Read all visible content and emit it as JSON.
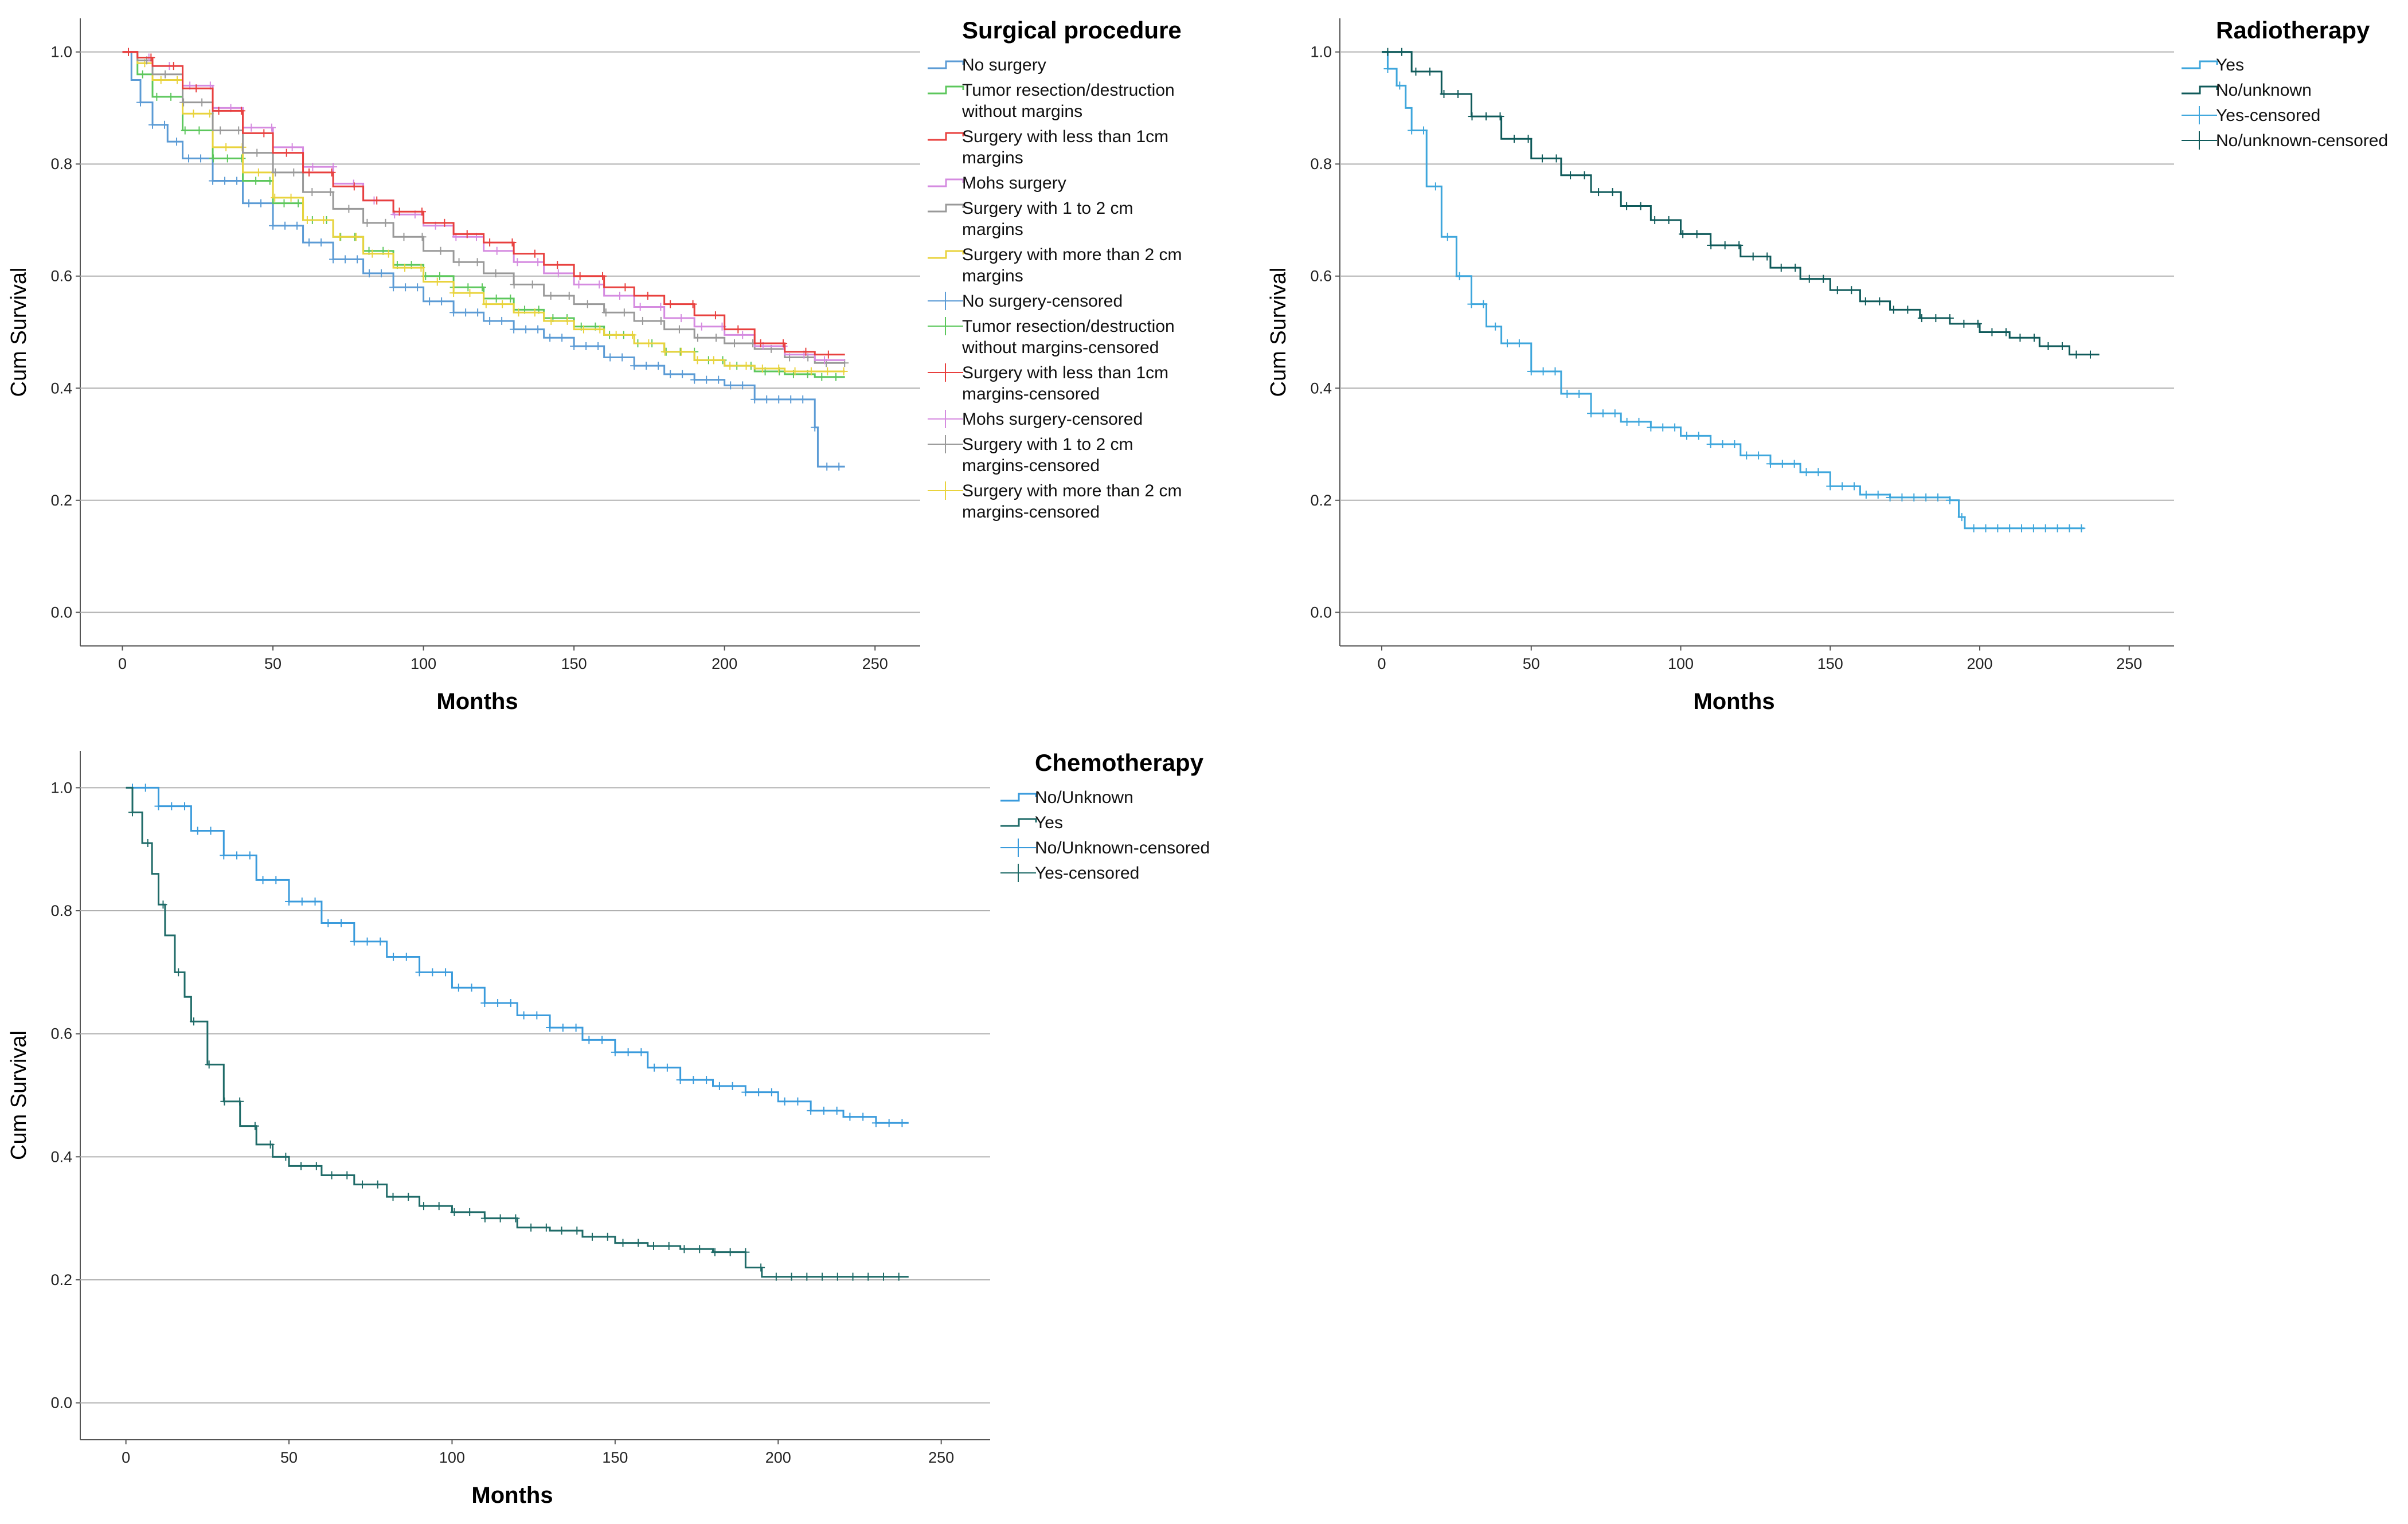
{
  "chart_data": [
    {
      "type": "line",
      "id": "surgery",
      "title": "",
      "xlabel": "Months",
      "ylabel": "Cum Survival",
      "xlim": [
        -14,
        265
      ],
      "ylim": [
        -0.06,
        1.06
      ],
      "xticks": [
        0,
        50,
        100,
        150,
        200,
        250
      ],
      "yticks": [
        0.0,
        0.2,
        0.4,
        0.6,
        0.8,
        1.0
      ],
      "xtick_labels": [
        "0",
        "50",
        "100",
        "150",
        "200",
        "250"
      ],
      "ytick_labels": [
        "0.0",
        "0.2",
        "0.4",
        "0.6",
        "0.8",
        "1.0"
      ],
      "grid": true,
      "legend_title": "Surgical procedure",
      "legend": [
        {
          "lines": [
            "No surgery"
          ],
          "color": "#5b9bd5",
          "marker": "step"
        },
        {
          "lines": [
            "Tumor resection/destruction",
            "without margins"
          ],
          "color": "#5cc75c",
          "marker": "step"
        },
        {
          "lines": [
            "Surgery with less than 1cm",
            "margins"
          ],
          "color": "#e8403e",
          "marker": "step"
        },
        {
          "lines": [
            "Mohs surgery"
          ],
          "color": "#d58be0",
          "marker": "step"
        },
        {
          "lines": [
            "Surgery with 1 to 2 cm",
            "margins"
          ],
          "color": "#999999",
          "marker": "step"
        },
        {
          "lines": [
            "Surgery with more than 2 cm",
            "margins"
          ],
          "color": "#e9d33d",
          "marker": "step"
        },
        {
          "lines": [
            "No surgery-censored"
          ],
          "color": "#5b9bd5",
          "marker": "plus"
        },
        {
          "lines": [
            "Tumor resection/destruction",
            "without margins-censored"
          ],
          "color": "#5cc75c",
          "marker": "plus"
        },
        {
          "lines": [
            "Surgery with less than 1cm",
            "margins-censored"
          ],
          "color": "#e8403e",
          "marker": "plus"
        },
        {
          "lines": [
            "Mohs surgery-censored"
          ],
          "color": "#d58be0",
          "marker": "plus"
        },
        {
          "lines": [
            "Surgery with 1 to 2 cm",
            "margins-censored"
          ],
          "color": "#999999",
          "marker": "plus"
        },
        {
          "lines": [
            "Surgery with more than 2 cm",
            "margins-censored"
          ],
          "color": "#e9d33d",
          "marker": "plus"
        }
      ],
      "series": [
        {
          "name": "No surgery",
          "color": "#5b9bd5",
          "x": [
            0,
            3,
            6,
            10,
            15,
            20,
            30,
            40,
            50,
            60,
            70,
            80,
            90,
            100,
            110,
            120,
            130,
            140,
            150,
            160,
            170,
            180,
            190,
            200,
            210,
            220,
            228,
            230,
            231,
            240
          ],
          "y": [
            1.0,
            0.95,
            0.91,
            0.87,
            0.84,
            0.81,
            0.77,
            0.73,
            0.69,
            0.66,
            0.63,
            0.605,
            0.58,
            0.555,
            0.535,
            0.52,
            0.505,
            0.49,
            0.475,
            0.455,
            0.44,
            0.425,
            0.415,
            0.405,
            0.38,
            0.38,
            0.38,
            0.33,
            0.26,
            0.26
          ]
        },
        {
          "name": "Tumor resection/destruction without margins",
          "color": "#5cc75c",
          "x": [
            0,
            5,
            10,
            20,
            30,
            40,
            50,
            60,
            70,
            80,
            90,
            100,
            110,
            120,
            130,
            140,
            150,
            160,
            170,
            180,
            190,
            200,
            210,
            220,
            230,
            240
          ],
          "y": [
            1.0,
            0.96,
            0.92,
            0.86,
            0.81,
            0.77,
            0.73,
            0.7,
            0.67,
            0.645,
            0.62,
            0.6,
            0.58,
            0.56,
            0.54,
            0.525,
            0.51,
            0.495,
            0.48,
            0.465,
            0.45,
            0.44,
            0.43,
            0.425,
            0.42,
            0.42
          ]
        },
        {
          "name": "Surgery with more than 2 cm margins",
          "color": "#e9d33d",
          "x": [
            0,
            5,
            10,
            20,
            30,
            40,
            50,
            60,
            70,
            80,
            90,
            100,
            110,
            120,
            130,
            140,
            150,
            160,
            170,
            180,
            190,
            200,
            210,
            220,
            230,
            240
          ],
          "y": [
            1.0,
            0.98,
            0.95,
            0.89,
            0.83,
            0.785,
            0.74,
            0.7,
            0.67,
            0.64,
            0.615,
            0.59,
            0.57,
            0.55,
            0.535,
            0.52,
            0.505,
            0.495,
            0.48,
            0.465,
            0.45,
            0.44,
            0.435,
            0.43,
            0.43,
            0.43
          ]
        },
        {
          "name": "Surgery with 1 to 2 cm margins",
          "color": "#999999",
          "x": [
            0,
            5,
            10,
            20,
            30,
            40,
            50,
            60,
            70,
            80,
            90,
            100,
            110,
            120,
            130,
            140,
            150,
            160,
            170,
            180,
            190,
            200,
            210,
            220,
            230,
            240
          ],
          "y": [
            1.0,
            0.985,
            0.96,
            0.91,
            0.86,
            0.82,
            0.785,
            0.75,
            0.72,
            0.695,
            0.67,
            0.645,
            0.625,
            0.605,
            0.585,
            0.565,
            0.55,
            0.535,
            0.52,
            0.505,
            0.49,
            0.48,
            0.47,
            0.455,
            0.445,
            0.445
          ]
        },
        {
          "name": "Mohs surgery",
          "color": "#d58be0",
          "x": [
            0,
            5,
            10,
            20,
            30,
            40,
            50,
            60,
            70,
            80,
            90,
            100,
            110,
            120,
            130,
            140,
            150,
            160,
            170,
            180,
            190,
            200,
            210,
            220,
            230,
            240
          ],
          "y": [
            1.0,
            0.99,
            0.975,
            0.94,
            0.9,
            0.865,
            0.83,
            0.795,
            0.765,
            0.735,
            0.71,
            0.69,
            0.67,
            0.645,
            0.625,
            0.605,
            0.585,
            0.565,
            0.545,
            0.525,
            0.51,
            0.495,
            0.475,
            0.46,
            0.45,
            0.45
          ]
        },
        {
          "name": "Surgery with less than 1cm margins",
          "color": "#e8403e",
          "x": [
            0,
            5,
            10,
            20,
            30,
            40,
            50,
            60,
            70,
            80,
            90,
            100,
            110,
            120,
            130,
            140,
            150,
            160,
            170,
            180,
            190,
            200,
            210,
            220,
            230,
            240
          ],
          "y": [
            1.0,
            0.99,
            0.975,
            0.935,
            0.895,
            0.855,
            0.82,
            0.785,
            0.76,
            0.735,
            0.715,
            0.695,
            0.675,
            0.66,
            0.64,
            0.62,
            0.6,
            0.58,
            0.565,
            0.55,
            0.53,
            0.505,
            0.48,
            0.465,
            0.46,
            0.46
          ]
        }
      ]
    },
    {
      "type": "line",
      "id": "radiotherapy",
      "title": "",
      "xlabel": "Months",
      "ylabel": "Cum Survival",
      "xlim": [
        -14,
        265
      ],
      "ylim": [
        -0.06,
        1.06
      ],
      "xticks": [
        0,
        50,
        100,
        150,
        200,
        250
      ],
      "yticks": [
        0.0,
        0.2,
        0.4,
        0.6,
        0.8,
        1.0
      ],
      "xtick_labels": [
        "0",
        "50",
        "100",
        "150",
        "200",
        "250"
      ],
      "ytick_labels": [
        "0.0",
        "0.2",
        "0.4",
        "0.6",
        "0.8",
        "1.0"
      ],
      "grid": true,
      "legend_title": "Radiotherapy",
      "legend": [
        {
          "lines": [
            "Yes"
          ],
          "color": "#3ea6dc",
          "marker": "step"
        },
        {
          "lines": [
            "No/unknown"
          ],
          "color": "#0f5a5a",
          "marker": "step"
        },
        {
          "lines": [
            "Yes-censored"
          ],
          "color": "#3ea6dc",
          "marker": "plus"
        },
        {
          "lines": [
            "No/unknown-censored"
          ],
          "color": "#0f5a5a",
          "marker": "plus"
        }
      ],
      "series": [
        {
          "name": "Yes",
          "color": "#3ea6dc",
          "x": [
            0,
            2,
            5,
            8,
            10,
            15,
            20,
            25,
            30,
            35,
            40,
            50,
            60,
            70,
            80,
            90,
            100,
            110,
            120,
            130,
            140,
            150,
            160,
            170,
            180,
            190,
            193,
            195,
            235
          ],
          "y": [
            1.0,
            0.97,
            0.94,
            0.9,
            0.86,
            0.76,
            0.67,
            0.6,
            0.55,
            0.51,
            0.48,
            0.43,
            0.39,
            0.355,
            0.34,
            0.33,
            0.315,
            0.3,
            0.28,
            0.265,
            0.25,
            0.225,
            0.21,
            0.205,
            0.205,
            0.2,
            0.17,
            0.15,
            0.15
          ]
        },
        {
          "name": "No/unknown",
          "color": "#0f5a5a",
          "x": [
            0,
            10,
            20,
            30,
            40,
            50,
            60,
            70,
            80,
            90,
            100,
            110,
            120,
            130,
            140,
            150,
            160,
            170,
            180,
            190,
            200,
            210,
            220,
            230,
            240
          ],
          "y": [
            1.0,
            0.965,
            0.925,
            0.885,
            0.845,
            0.81,
            0.78,
            0.75,
            0.725,
            0.7,
            0.675,
            0.655,
            0.635,
            0.615,
            0.595,
            0.575,
            0.555,
            0.54,
            0.525,
            0.515,
            0.5,
            0.49,
            0.475,
            0.46,
            0.46
          ]
        }
      ]
    },
    {
      "type": "line",
      "id": "chemotherapy",
      "title": "",
      "xlabel": "Months",
      "ylabel": "Cum Survival",
      "xlim": [
        -14,
        265
      ],
      "ylim": [
        -0.06,
        1.06
      ],
      "xticks": [
        0,
        50,
        100,
        150,
        200,
        250
      ],
      "yticks": [
        0.0,
        0.2,
        0.4,
        0.6,
        0.8,
        1.0
      ],
      "xtick_labels": [
        "0",
        "50",
        "100",
        "150",
        "200",
        "250"
      ],
      "ytick_labels": [
        "0.0",
        "0.2",
        "0.4",
        "0.6",
        "0.8",
        "1.0"
      ],
      "grid": true,
      "legend_title": "Chemotherapy",
      "legend": [
        {
          "lines": [
            "No/Unknown"
          ],
          "color": "#3a9bdc",
          "marker": "step"
        },
        {
          "lines": [
            "Yes"
          ],
          "color": "#1f6b68",
          "marker": "step"
        },
        {
          "lines": [
            "No/Unknown-censored"
          ],
          "color": "#3a9bdc",
          "marker": "plus"
        },
        {
          "lines": [
            "Yes-censored"
          ],
          "color": "#1f6b68",
          "marker": "plus"
        }
      ],
      "series": [
        {
          "name": "No/Unknown",
          "color": "#3a9bdc",
          "x": [
            0,
            10,
            20,
            30,
            40,
            50,
            60,
            70,
            80,
            90,
            100,
            110,
            120,
            130,
            140,
            150,
            160,
            170,
            180,
            190,
            200,
            210,
            220,
            230,
            240
          ],
          "y": [
            1.0,
            0.97,
            0.93,
            0.89,
            0.85,
            0.815,
            0.78,
            0.75,
            0.725,
            0.7,
            0.675,
            0.65,
            0.63,
            0.61,
            0.59,
            0.57,
            0.545,
            0.525,
            0.515,
            0.505,
            0.49,
            0.475,
            0.465,
            0.455,
            0.455
          ]
        },
        {
          "name": "Yes",
          "color": "#1f6b68",
          "x": [
            0,
            2,
            5,
            8,
            10,
            12,
            15,
            18,
            20,
            25,
            30,
            35,
            40,
            45,
            50,
            60,
            70,
            80,
            90,
            100,
            110,
            120,
            130,
            140,
            150,
            160,
            170,
            180,
            185,
            190,
            195,
            200,
            240
          ],
          "y": [
            1.0,
            0.96,
            0.91,
            0.86,
            0.81,
            0.76,
            0.7,
            0.66,
            0.62,
            0.55,
            0.49,
            0.45,
            0.42,
            0.4,
            0.385,
            0.37,
            0.355,
            0.335,
            0.32,
            0.31,
            0.3,
            0.285,
            0.28,
            0.27,
            0.26,
            0.255,
            0.25,
            0.245,
            0.245,
            0.22,
            0.205,
            0.205,
            0.205
          ]
        }
      ]
    }
  ]
}
